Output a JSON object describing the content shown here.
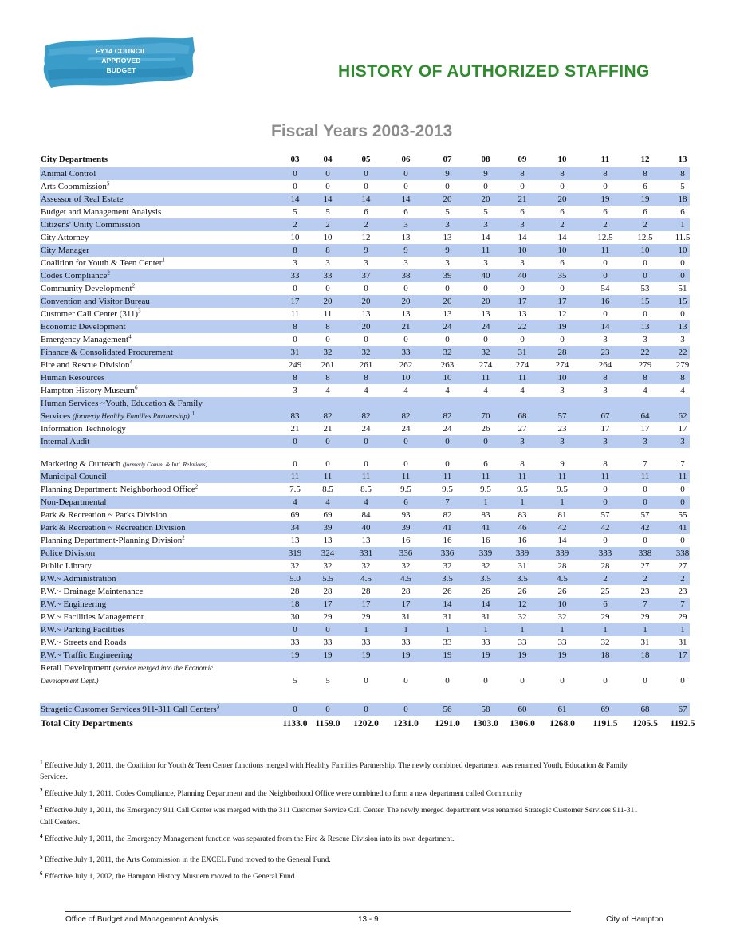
{
  "badge": {
    "lines": [
      "FY14 COUNCIL",
      "APPROVED",
      "BUDGET"
    ],
    "brush_color": "#3a9cc8"
  },
  "title": "HISTORY OF AUTHORIZED STAFFING",
  "subtitle": "Fiscal Years 2003-2013",
  "colors": {
    "title": "#2e8b2e",
    "subtitle": "#8c8c8c",
    "row_shade": "#b9cdf0"
  },
  "table": {
    "header_label": "City Departments",
    "years": [
      "03",
      "04",
      "05",
      "06",
      "07",
      "08",
      "09",
      "10",
      "11",
      "12",
      "13"
    ],
    "rows": [
      {
        "name": "Animal Control",
        "v": [
          "0",
          "0",
          "0",
          "0",
          "9",
          "9",
          "8",
          "8",
          "8",
          "8",
          "8"
        ]
      },
      {
        "name": "Arts Coommission",
        "sup": "5",
        "v": [
          "0",
          "0",
          "0",
          "0",
          "0",
          "0",
          "0",
          "0",
          "0",
          "6",
          "5"
        ]
      },
      {
        "name": "Assessor of Real Estate",
        "v": [
          "14",
          "14",
          "14",
          "14",
          "20",
          "20",
          "21",
          "20",
          "19",
          "19",
          "18"
        ]
      },
      {
        "name": "Budget and Management Analysis",
        "v": [
          "5",
          "5",
          "6",
          "6",
          "5",
          "5",
          "6",
          "6",
          "6",
          "6",
          "6"
        ]
      },
      {
        "name": "Citizens' Unity Commission",
        "v": [
          "2",
          "2",
          "2",
          "3",
          "3",
          "3",
          "3",
          "2",
          "2",
          "2",
          "1"
        ]
      },
      {
        "name": "City Attorney",
        "v": [
          "10",
          "10",
          "12",
          "13",
          "13",
          "14",
          "14",
          "14",
          "12.5",
          "12.5",
          "11.5"
        ]
      },
      {
        "name": "City Manager",
        "v": [
          "8",
          "8",
          "9",
          "9",
          "9",
          "11",
          "10",
          "10",
          "11",
          "10",
          "10"
        ]
      },
      {
        "name": "Coalition for Youth & Teen Center",
        "sup": "1",
        "v": [
          "3",
          "3",
          "3",
          "3",
          "3",
          "3",
          "3",
          "6",
          "0",
          "0",
          "0"
        ]
      },
      {
        "name": "Codes Compliance",
        "sup": "2",
        "v": [
          "33",
          "33",
          "37",
          "38",
          "39",
          "40",
          "40",
          "35",
          "0",
          "0",
          "0"
        ]
      },
      {
        "name": "Community Development",
        "sup": "2",
        "v": [
          "0",
          "0",
          "0",
          "0",
          "0",
          "0",
          "0",
          "0",
          "54",
          "53",
          "51"
        ]
      },
      {
        "name": "Convention and Visitor Bureau",
        "v": [
          "17",
          "20",
          "20",
          "20",
          "20",
          "20",
          "17",
          "17",
          "16",
          "15",
          "15"
        ]
      },
      {
        "name": "Customer Call Center (311)",
        "sup": "3",
        "v": [
          "11",
          "11",
          "13",
          "13",
          "13",
          "13",
          "13",
          "12",
          "0",
          "0",
          "0"
        ]
      },
      {
        "name": "Economic Development",
        "v": [
          "8",
          "8",
          "20",
          "21",
          "24",
          "24",
          "22",
          "19",
          "14",
          "13",
          "13"
        ]
      },
      {
        "name": "Emergency Management",
        "sup": "4",
        "v": [
          "0",
          "0",
          "0",
          "0",
          "0",
          "0",
          "0",
          "0",
          "3",
          "3",
          "3"
        ]
      },
      {
        "name": "Finance & Consolidated Procurement",
        "v": [
          "31",
          "32",
          "32",
          "33",
          "32",
          "32",
          "31",
          "28",
          "23",
          "22",
          "22"
        ]
      },
      {
        "name": "Fire and Rescue Division",
        "sup": "4",
        "v": [
          "249",
          "261",
          "261",
          "262",
          "263",
          "274",
          "274",
          "274",
          "264",
          "279",
          "279"
        ]
      },
      {
        "name": "Human Resources",
        "v": [
          "8",
          "8",
          "8",
          "10",
          "10",
          "11",
          "11",
          "10",
          "8",
          "8",
          "8"
        ]
      },
      {
        "name": "Hampton History Museum",
        "sup": "6",
        "v": [
          "3",
          "4",
          "4",
          "4",
          "4",
          "4",
          "4",
          "3",
          "3",
          "4",
          "4"
        ]
      },
      {
        "name": "Human Services ~Youth, Education & Family",
        "name2": "Services",
        "ital": "(formerly Healthy Families Partnership)",
        "sup": "1",
        "tall": true,
        "v": [
          "83",
          "82",
          "82",
          "82",
          "82",
          "70",
          "68",
          "57",
          "67",
          "64",
          "62"
        ]
      },
      {
        "name": "Information Technology",
        "v": [
          "21",
          "21",
          "24",
          "24",
          "24",
          "26",
          "27",
          "23",
          "17",
          "17",
          "17"
        ]
      },
      {
        "name": "Internal Audit",
        "v": [
          "0",
          "0",
          "0",
          "0",
          "0",
          "0",
          "3",
          "3",
          "3",
          "3",
          "3"
        ]
      },
      {
        "name": "",
        "spacer": true,
        "v": [
          "",
          "",
          "",
          "",
          "",
          "",
          "",
          "",
          "",
          "",
          ""
        ]
      },
      {
        "name": "Marketing & Outreach",
        "ital": "(formerly Comm. & Intl. Relations)",
        "v": [
          "0",
          "0",
          "0",
          "0",
          "0",
          "6",
          "8",
          "9",
          "8",
          "7",
          "7"
        ]
      },
      {
        "name": "Municipal Council",
        "v": [
          "11",
          "11",
          "11",
          "11",
          "11",
          "11",
          "11",
          "11",
          "11",
          "11",
          "11"
        ]
      },
      {
        "name": "Planning Department: Neighborhood Office",
        "sup": "2",
        "v": [
          "7.5",
          "8.5",
          "8.5",
          "9.5",
          "9.5",
          "9.5",
          "9.5",
          "9.5",
          "0",
          "0",
          "0"
        ]
      },
      {
        "name": "Non-Departmental",
        "v": [
          "4",
          "4",
          "4",
          "6",
          "7",
          "1",
          "1",
          "1",
          "0",
          "0",
          "0"
        ]
      },
      {
        "name": "Park & Recreation ~ Parks Division",
        "v": [
          "69",
          "69",
          "84",
          "93",
          "82",
          "83",
          "83",
          "81",
          "57",
          "57",
          "55"
        ]
      },
      {
        "name": "Park & Recreation ~ Recreation Division",
        "v": [
          "34",
          "39",
          "40",
          "39",
          "41",
          "41",
          "46",
          "42",
          "42",
          "42",
          "41"
        ]
      },
      {
        "name": "Planning Department-Planning Division",
        "sup": "2",
        "v": [
          "13",
          "13",
          "13",
          "16",
          "16",
          "16",
          "16",
          "14",
          "0",
          "0",
          "0"
        ]
      },
      {
        "name": "Police Division",
        "v": [
          "319",
          "324",
          "331",
          "336",
          "336",
          "339",
          "339",
          "339",
          "333",
          "338",
          "338"
        ]
      },
      {
        "name": "Public Library",
        "v": [
          "32",
          "32",
          "32",
          "32",
          "32",
          "32",
          "31",
          "28",
          "28",
          "27",
          "27"
        ]
      },
      {
        "name": "P.W.~ Administration",
        "v": [
          "5.0",
          "5.5",
          "4.5",
          "4.5",
          "3.5",
          "3.5",
          "3.5",
          "4.5",
          "2",
          "2",
          "2"
        ]
      },
      {
        "name": "P.W.~ Drainage Maintenance",
        "v": [
          "28",
          "28",
          "28",
          "28",
          "26",
          "26",
          "26",
          "26",
          "25",
          "23",
          "23"
        ]
      },
      {
        "name": "P.W.~ Engineering",
        "v": [
          "18",
          "17",
          "17",
          "17",
          "14",
          "14",
          "12",
          "10",
          "6",
          "7",
          "7"
        ]
      },
      {
        "name": "P.W.~ Facilities Management",
        "v": [
          "30",
          "29",
          "29",
          "31",
          "31",
          "31",
          "32",
          "32",
          "29",
          "29",
          "29"
        ]
      },
      {
        "name": "P.W.~ Parking Facilities",
        "v": [
          "0",
          "0",
          "1",
          "1",
          "1",
          "1",
          "1",
          "1",
          "1",
          "1",
          "1"
        ]
      },
      {
        "name": "P.W.~ Streets and Roads",
        "v": [
          "33",
          "33",
          "33",
          "33",
          "33",
          "33",
          "33",
          "33",
          "32",
          "31",
          "31"
        ]
      },
      {
        "name": "P.W.~ Traffic Engineering",
        "v": [
          "19",
          "19",
          "19",
          "19",
          "19",
          "19",
          "19",
          "19",
          "18",
          "18",
          "17"
        ]
      },
      {
        "name": "Retail Development",
        "ital": "(service merged into the Economic",
        "ital2": "Development Dept.)",
        "tall": true,
        "v": [
          "5",
          "5",
          "0",
          "0",
          "0",
          "0",
          "0",
          "0",
          "0",
          "0",
          "0"
        ]
      },
      {
        "name": "",
        "spacer": true,
        "v": [
          "",
          "",
          "",
          "",
          "",
          "",
          "",
          "",
          "",
          "",
          ""
        ]
      },
      {
        "name": "Stragetic Customer Services 911-311 Call Centers",
        "sup": "3",
        "v": [
          "0",
          "0",
          "0",
          "0",
          "56",
          "58",
          "60",
          "61",
          "69",
          "68",
          "67"
        ]
      }
    ],
    "total": {
      "name": "Total City Departments",
      "v": [
        "1133.0",
        "1159.0",
        "1202.0",
        "1231.0",
        "1291.0",
        "1303.0",
        "1306.0",
        "1268.0",
        "1191.5",
        "1205.5",
        "1192.5"
      ]
    }
  },
  "footnotes": [
    {
      "num": "1",
      "text": "Effective July 1, 2011, the Coalition for Youth & Teen Center functions merged with Healthy Families Partnership. The newly combined department was renamed Youth, Education & Family Services."
    },
    {
      "num": "2",
      "text": "Effective July 1, 2011, Codes Compliance, Planning Department and the Neighborhood Office were combined to form a new department called Community"
    },
    {
      "num": "3",
      "text": "Effective July 1, 2011, the Emergency 911 Call Center was merged with the 311 Customer Service Call Center. The newly merged department was renamed Strategic Customer Services 911-311 Call Centers."
    },
    {
      "num": "4",
      "text": "Effective July 1, 2011, the Emergency Management function was separated from the Fire & Rescue Division into its own department."
    },
    {
      "num": "5",
      "text": "Effective July 1, 2011, the Arts Commission in the EXCEL Fund moved to the General Fund."
    },
    {
      "num": "6",
      "text": "Effective July 1, 2002, the Hampton History Musuem moved to the General Fund."
    }
  ],
  "footer": {
    "left": "Office of Budget and Management Analysis",
    "center": "13 - 9",
    "right": "City of Hampton"
  }
}
